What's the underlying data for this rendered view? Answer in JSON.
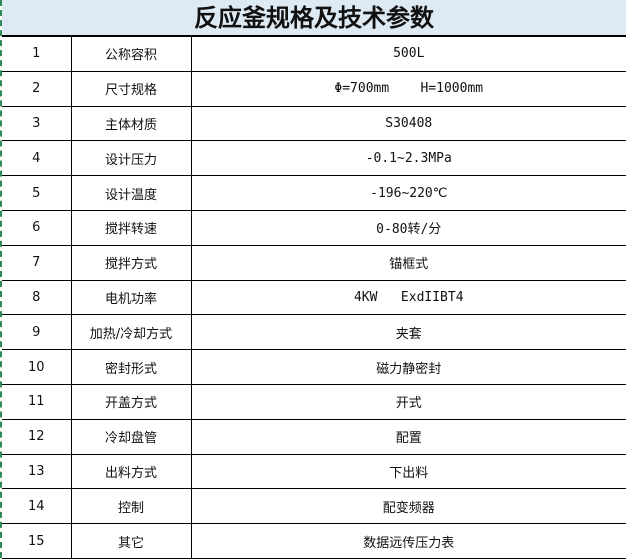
{
  "title": "反应釜规格及技术参数",
  "table": {
    "rows": [
      [
        "1",
        "公称容积",
        "500L"
      ],
      [
        "2",
        "尺寸规格",
        "Φ=700mm    H=1000mm"
      ],
      [
        "3",
        "主体材质",
        "S30408"
      ],
      [
        "4",
        "设计压力",
        "-0.1~2.3MPa"
      ],
      [
        "5",
        "设计温度",
        "-196~220℃"
      ],
      [
        "6",
        "搅拌转速",
        "0-80转/分"
      ],
      [
        "7",
        "搅拌方式",
        "锚框式"
      ],
      [
        "8",
        "电机功率",
        "4KW   ExdIIBT4"
      ],
      [
        "9",
        "加热/冷却方式",
        "夹套"
      ],
      [
        "10",
        "密封形式",
        "磁力静密封"
      ],
      [
        "11",
        "开盖方式",
        "开式"
      ],
      [
        "12",
        "冷却盘管",
        "配置"
      ],
      [
        "13",
        "出料方式",
        "下出料"
      ],
      [
        "14",
        "控制",
        "配变频器"
      ],
      [
        "15",
        "其它",
        "数据远传压力表"
      ]
    ]
  }
}
